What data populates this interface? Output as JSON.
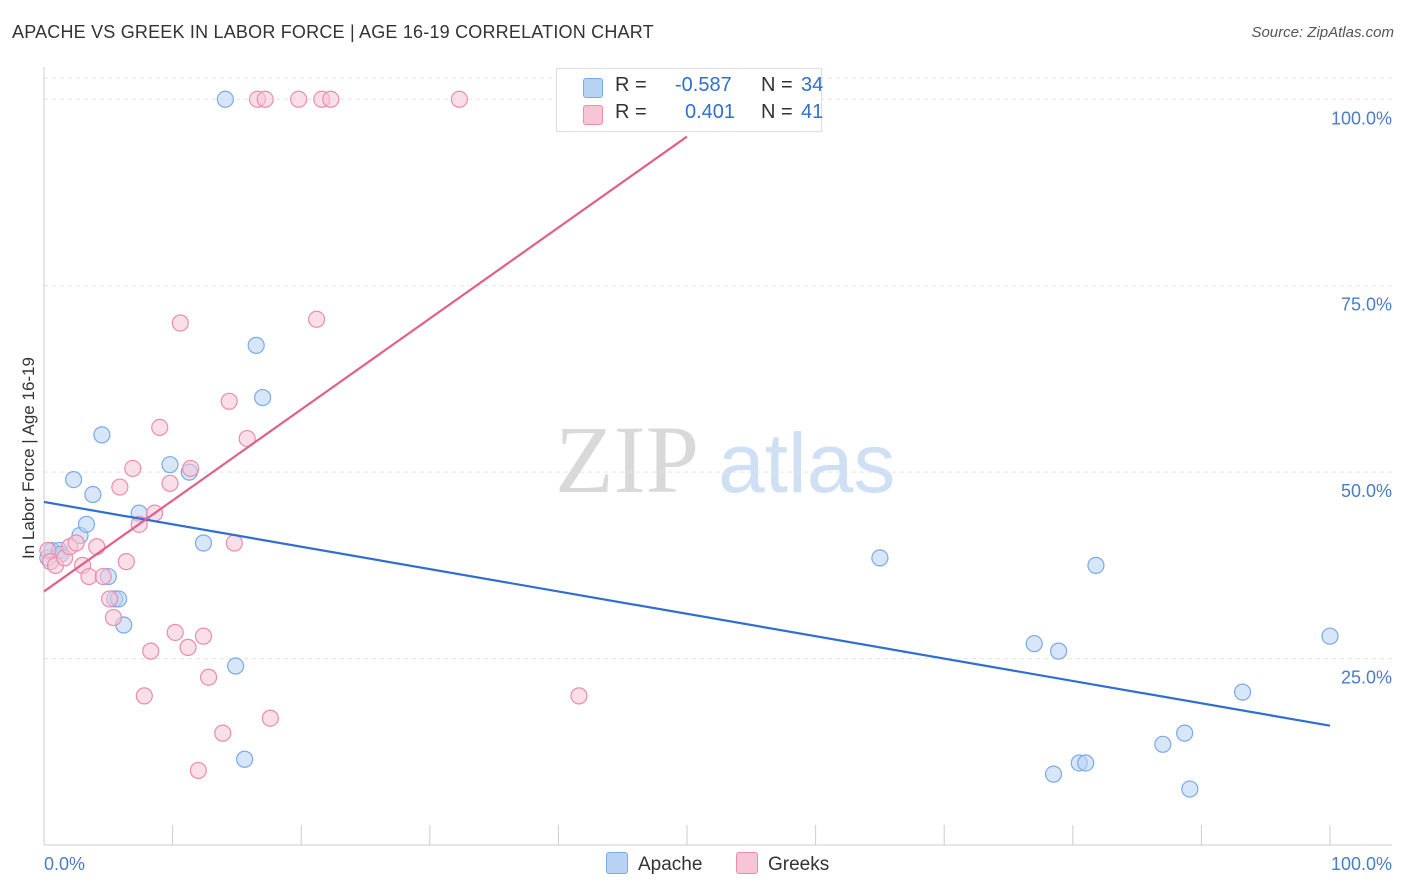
{
  "title": "APACHE VS GREEK IN LABOR FORCE | AGE 16-19 CORRELATION CHART",
  "source": "Source: ZipAtlas.com",
  "watermark": {
    "zip": "ZIP",
    "atlas": "atlas"
  },
  "legend": {
    "series": [
      {
        "name": "Apache",
        "r_label": "R =",
        "r_value": "-0.587",
        "n_label": "N =",
        "n_value": "34",
        "color": "#7aaae8",
        "fill": "#b8d2f4"
      },
      {
        "name": "Greeks",
        "r_label": "R =",
        "r_value": "0.401",
        "n_label": "N =",
        "n_value": "41",
        "color": "#eb8caa",
        "fill": "#f7c5d5"
      }
    ]
  },
  "chart_data": {
    "type": "scatter",
    "title": "APACHE VS GREEK IN LABOR FORCE | AGE 16-19 CORRELATION CHART",
    "xlabel": "",
    "ylabel": "In Labor Force | Age 16-19",
    "xlim": [
      0,
      100
    ],
    "ylim": [
      0,
      105
    ],
    "x_tick_labels": {
      "left": "0.0%",
      "right": "100.0%"
    },
    "y_ticks": [
      {
        "value": 100,
        "label": "100.0%"
      },
      {
        "value": 75,
        "label": "75.0%"
      },
      {
        "value": 50,
        "label": "50.0%"
      },
      {
        "value": 25,
        "label": "25.0%"
      }
    ],
    "series": [
      {
        "name": "Apache",
        "color": "#2f6fd0",
        "points": [
          [
            0.3,
            38.5
          ],
          [
            0.6,
            39.5
          ],
          [
            1.2,
            39.5
          ],
          [
            1.3,
            39.0
          ],
          [
            2.3,
            49.0
          ],
          [
            2.8,
            41.5
          ],
          [
            3.3,
            43.0
          ],
          [
            3.8,
            47.0
          ],
          [
            4.5,
            55.0
          ],
          [
            5.0,
            36.0
          ],
          [
            5.5,
            33.0
          ],
          [
            5.8,
            33.0
          ],
          [
            6.2,
            29.5
          ],
          [
            7.4,
            44.5
          ],
          [
            9.8,
            51.0
          ],
          [
            11.3,
            50.0
          ],
          [
            12.4,
            40.5
          ],
          [
            14.1,
            100.0
          ],
          [
            14.9,
            24.0
          ],
          [
            15.6,
            11.5
          ],
          [
            16.5,
            67.0
          ],
          [
            17.0,
            60.0
          ],
          [
            65.0,
            38.5
          ],
          [
            77.0,
            27.0
          ],
          [
            78.5,
            9.5
          ],
          [
            78.9,
            26.0
          ],
          [
            80.5,
            11.0
          ],
          [
            81.0,
            11.0
          ],
          [
            81.8,
            37.5
          ],
          [
            87.0,
            13.5
          ],
          [
            88.7,
            15.0
          ],
          [
            89.1,
            7.5
          ],
          [
            93.2,
            20.5
          ],
          [
            100.0,
            28.0
          ]
        ],
        "trend": {
          "x": [
            0,
            100
          ],
          "y": [
            46.0,
            16.0
          ]
        }
      },
      {
        "name": "Greeks",
        "color": "#e0608b",
        "points": [
          [
            0.3,
            39.5
          ],
          [
            0.5,
            38.0
          ],
          [
            0.9,
            37.5
          ],
          [
            1.6,
            38.5
          ],
          [
            2.0,
            40.0
          ],
          [
            2.5,
            40.5
          ],
          [
            3.0,
            37.5
          ],
          [
            3.5,
            36.0
          ],
          [
            4.1,
            40.0
          ],
          [
            4.6,
            36.0
          ],
          [
            5.1,
            33.0
          ],
          [
            5.4,
            30.5
          ],
          [
            5.9,
            48.0
          ],
          [
            6.4,
            38.0
          ],
          [
            6.9,
            50.5
          ],
          [
            7.4,
            43.0
          ],
          [
            7.8,
            20.0
          ],
          [
            8.3,
            26.0
          ],
          [
            8.6,
            44.5
          ],
          [
            9.0,
            56.0
          ],
          [
            9.8,
            48.5
          ],
          [
            10.2,
            28.5
          ],
          [
            10.6,
            70.0
          ],
          [
            11.2,
            26.5
          ],
          [
            11.4,
            50.5
          ],
          [
            12.0,
            10.0
          ],
          [
            12.4,
            28.0
          ],
          [
            12.8,
            22.5
          ],
          [
            13.9,
            15.0
          ],
          [
            14.4,
            59.5
          ],
          [
            14.8,
            40.5
          ],
          [
            15.8,
            54.5
          ],
          [
            16.6,
            100.0
          ],
          [
            17.2,
            100.0
          ],
          [
            17.6,
            17.0
          ],
          [
            19.8,
            100.0
          ],
          [
            21.2,
            70.5
          ],
          [
            21.6,
            100.0
          ],
          [
            22.3,
            100.0
          ],
          [
            32.3,
            100.0
          ],
          [
            41.6,
            20.0
          ]
        ],
        "trend": {
          "x": [
            0,
            50
          ],
          "y": [
            34.0,
            95.0
          ]
        }
      }
    ]
  }
}
